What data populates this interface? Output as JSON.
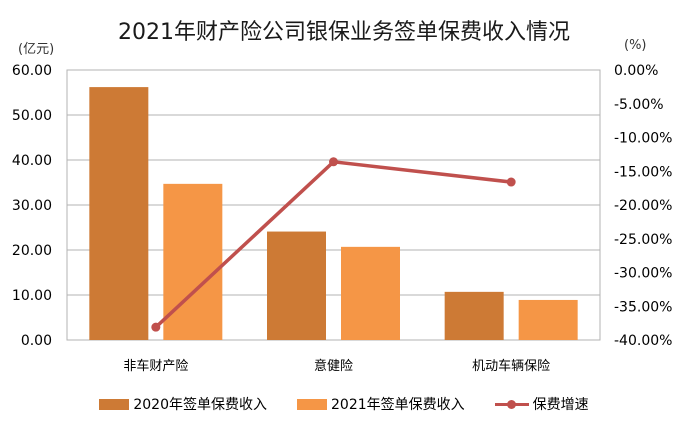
{
  "chart_data": {
    "type": "bar",
    "title": "2021年财产险公司银保业务签单保费收入情况",
    "xlabel": "",
    "ylabel": "(亿元)",
    "y2label": "(%)",
    "categories": [
      "非车财产险",
      "意健险",
      "机动车辆保险"
    ],
    "series": [
      {
        "name": "2020年签单保费收入",
        "type": "bar",
        "axis": "left",
        "color": "#CD7A35",
        "values": [
          56.2,
          24.1,
          10.7
        ]
      },
      {
        "name": "2021年签单保费收入",
        "type": "bar",
        "axis": "left",
        "color": "#F59646",
        "values": [
          34.7,
          20.7,
          8.9
        ]
      },
      {
        "name": "保费增速",
        "type": "line",
        "axis": "right",
        "color": "#C0504D",
        "values": [
          -38.1,
          -13.6,
          -16.6
        ]
      }
    ],
    "ylim": [
      0,
      60
    ],
    "y2lim": [
      -40,
      0
    ],
    "yticks": [
      "0.00",
      "10.00",
      "20.00",
      "30.00",
      "40.00",
      "50.00",
      "60.00"
    ],
    "y2ticks": [
      "0.00%",
      "-5.00%",
      "-10.00%",
      "-15.00%",
      "-20.00%",
      "-25.00%",
      "-30.00%",
      "-35.00%",
      "-40.00%"
    ],
    "grid": true,
    "legend_position": "bottom"
  },
  "header": {
    "title": "2021年财产险公司银保业务签单保费收入情况",
    "unit_left": "(亿元)",
    "unit_right": "(%)"
  },
  "legend": [
    {
      "label": "2020年签单保费收入",
      "color": "#CD7A35"
    },
    {
      "label": "2021年签单保费收入",
      "color": "#F59646"
    },
    {
      "label": "保费增速",
      "color": "#C0504D"
    }
  ]
}
